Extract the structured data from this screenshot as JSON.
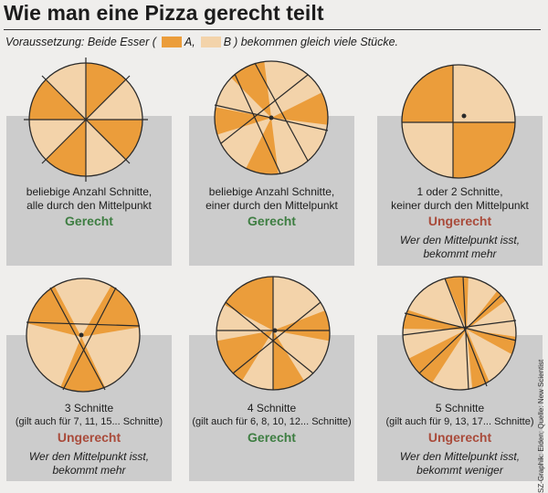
{
  "title": "Wie man eine Pizza gerecht teilt",
  "premise": {
    "before": "Voraussetzung: Beide Esser (",
    "label_a": "A,",
    "label_b": "B",
    "after": ") bekommen gleich viele Stücke."
  },
  "colors": {
    "A": "#eb9d3b",
    "B": "#f3d3aa",
    "fair": "#3e7e42",
    "unfair": "#a94b3b"
  },
  "panels": [
    {
      "cuts": "beliebige Anzahl Schnitte,",
      "cuts2": "alle durch den Mittelpunkt",
      "verdict": "Gerecht",
      "note": "",
      "note2": ""
    },
    {
      "cuts": "beliebige Anzahl Schnitte,",
      "cuts2": "einer durch den Mittelpunkt",
      "verdict": "Gerecht",
      "note": "",
      "note2": ""
    },
    {
      "cuts": "1 oder 2 Schnitte,",
      "cuts2": "keiner durch den Mittelpunkt",
      "verdict": "Ungerecht",
      "note": "Wer den Mittelpunkt isst,",
      "note2": "bekommt mehr"
    },
    {
      "cuts": "3 Schnitte",
      "cuts2": "(gilt auch für 7, 11, 15... Schnitte)",
      "verdict": "Ungerecht",
      "note": "Wer den Mittelpunkt isst,",
      "note2": "bekommt mehr"
    },
    {
      "cuts": "4 Schnitte",
      "cuts2": "(gilt auch für 6, 8, 10, 12... Schnitte)",
      "verdict": "Gerecht",
      "note": "",
      "note2": ""
    },
    {
      "cuts": "5 Schnitte",
      "cuts2": "(gilt auch für 9, 13, 17... Schnitte)",
      "verdict": "Ungerecht",
      "note": "Wer den Mittelpunkt isst,",
      "note2": "bekommt weniger"
    }
  ],
  "credit": "SZ-Graphik: Eiden; Quelle: New Scientist"
}
